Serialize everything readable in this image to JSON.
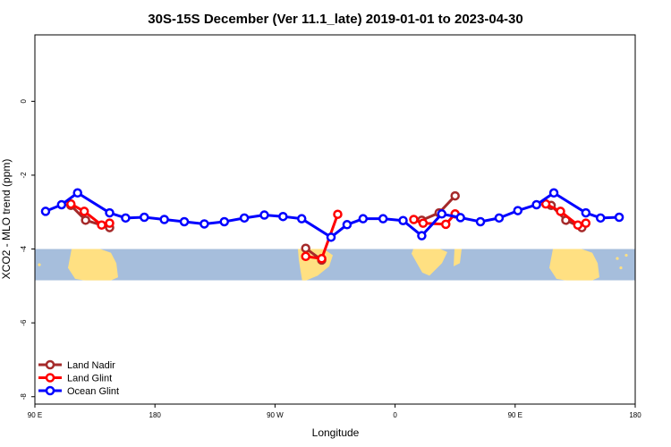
{
  "chart_data": {
    "type": "line",
    "title": "30S-15S December (Ver 11.1_late)   2019-01-01 to 2023-04-30",
    "xlabel": "Longitude",
    "ylabel": "XCO2 - MLO trend (ppm)",
    "xlim": [
      90,
      540
    ],
    "ylim": [
      -8.2,
      1.8
    ],
    "x_ticks": [
      {
        "value": 90,
        "label": "90 E"
      },
      {
        "value": 180,
        "label": "180"
      },
      {
        "value": 270,
        "label": "90 W"
      },
      {
        "value": 360,
        "label": "0"
      },
      {
        "value": 450,
        "label": "90 E"
      },
      {
        "value": 540,
        "label": "180"
      }
    ],
    "y_ticks": [
      {
        "value": 0,
        "label": "0"
      },
      {
        "value": -2,
        "label": "-2"
      },
      {
        "value": -4,
        "label": "-4"
      },
      {
        "value": -6,
        "label": "-6"
      },
      {
        "value": -8,
        "label": "-8"
      }
    ],
    "map_band": {
      "top": -4.0,
      "bottom": -4.85,
      "ocean_color": "#a6bedc",
      "land_color": "#ffe082"
    },
    "legend": {
      "position": "bottom-left"
    },
    "series": [
      {
        "name": "Land Nadir",
        "color": "#a52a2a",
        "segments": [
          [
            [
              117,
              -2.82
            ],
            [
              128,
              -3.22
            ],
            [
              146,
              -3.42
            ]
          ],
          [
            [
              293,
              -3.98
            ],
            [
              305,
              -4.3
            ]
          ],
          [
            [
              380,
              -3.22
            ],
            [
              393,
              -3.02
            ],
            [
              405,
              -2.56
            ]
          ],
          [
            [
              477,
              -2.82
            ],
            [
              488,
              -3.22
            ],
            [
              500,
              -3.42
            ]
          ]
        ]
      },
      {
        "name": "Land Glint",
        "color": "#ff0000",
        "segments": [
          [
            [
              117,
              -2.78
            ],
            [
              127,
              -2.98
            ],
            [
              140,
              -3.35
            ],
            [
              146,
              -3.3
            ]
          ],
          [
            [
              293,
              -4.2
            ],
            [
              305,
              -4.26
            ],
            [
              317,
              -3.06
            ]
          ],
          [
            [
              374,
              -3.2
            ],
            [
              381,
              -3.3
            ],
            [
              398,
              -3.33
            ],
            [
              405,
              -3.05
            ]
          ],
          [
            [
              473,
              -2.78
            ],
            [
              484,
              -2.98
            ],
            [
              497,
              -3.35
            ],
            [
              503,
              -3.3
            ]
          ]
        ]
      },
      {
        "name": "Ocean Glint",
        "color": "#0000ff",
        "segments": [
          [
            [
              98,
              -2.98
            ],
            [
              110,
              -2.8
            ],
            [
              122,
              -2.48
            ],
            [
              146,
              -3.02
            ],
            [
              158,
              -3.16
            ],
            [
              172,
              -3.14
            ],
            [
              187,
              -3.2
            ],
            [
              202,
              -3.26
            ],
            [
              217,
              -3.32
            ],
            [
              232,
              -3.26
            ],
            [
              247,
              -3.16
            ],
            [
              262,
              -3.08
            ],
            [
              276,
              -3.12
            ],
            [
              290,
              -3.18
            ],
            [
              312,
              -3.68
            ],
            [
              324,
              -3.34
            ],
            [
              336,
              -3.18
            ],
            [
              351,
              -3.18
            ],
            [
              366,
              -3.23
            ],
            [
              380,
              -3.64
            ],
            [
              395,
              -3.05
            ],
            [
              409,
              -3.15
            ],
            [
              424,
              -3.26
            ],
            [
              438,
              -3.16
            ],
            [
              452,
              -2.96
            ],
            [
              466,
              -2.8
            ],
            [
              479,
              -2.48
            ],
            [
              503,
              -3.02
            ],
            [
              514,
              -3.16
            ],
            [
              528,
              -3.14
            ]
          ]
        ]
      }
    ]
  }
}
